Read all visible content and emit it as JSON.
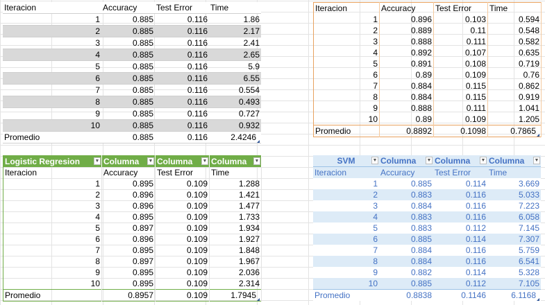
{
  "gray_table": {
    "headers": [
      "Iteracion",
      "Accuracy",
      "Test Error",
      "Time"
    ],
    "rows": [
      [
        "1",
        "0.885",
        "0.116",
        "1.86"
      ],
      [
        "2",
        "0.885",
        "0.116",
        "2.17"
      ],
      [
        "3",
        "0.885",
        "0.116",
        "2.41"
      ],
      [
        "4",
        "0.885",
        "0.116",
        "2.65"
      ],
      [
        "5",
        "0.885",
        "0.116",
        "5.9"
      ],
      [
        "6",
        "0.885",
        "0.116",
        "6.55"
      ],
      [
        "7",
        "0.885",
        "0.116",
        "0.554"
      ],
      [
        "8",
        "0.885",
        "0.116",
        "0.493"
      ],
      [
        "9",
        "0.885",
        "0.116",
        "0.727"
      ],
      [
        "10",
        "0.885",
        "0.116",
        "0.932"
      ]
    ],
    "footer": [
      "Promedio",
      "0.885",
      "0.116",
      "2.4246"
    ]
  },
  "orange_table": {
    "headers": [
      "Iteracion",
      "Accuracy",
      "Test Error",
      "Time"
    ],
    "rows": [
      [
        "1",
        "0.896",
        "0.103",
        "0.594"
      ],
      [
        "2",
        "0.889",
        "0.11",
        "0.548"
      ],
      [
        "3",
        "0.888",
        "0.111",
        "0.582"
      ],
      [
        "4",
        "0.892",
        "0.107",
        "0.635"
      ],
      [
        "5",
        "0.891",
        "0.108",
        "0.719"
      ],
      [
        "6",
        "0.89",
        "0.109",
        "0.76"
      ],
      [
        "7",
        "0.884",
        "0.115",
        "0.862"
      ],
      [
        "8",
        "0.884",
        "0.115",
        "0.919"
      ],
      [
        "9",
        "0.888",
        "0.111",
        "1.041"
      ],
      [
        "10",
        "0.89",
        "0.109",
        "1.205"
      ]
    ],
    "footer": [
      "Promedio",
      "0.8892",
      "0.1098",
      "0.7865"
    ]
  },
  "green_table": {
    "titles": [
      "Logistic Regresion",
      "Columna",
      "Columna",
      "Columna"
    ],
    "headers": [
      "Iteracion",
      "Accuracy",
      "Test Error",
      "Time"
    ],
    "rows": [
      [
        "1",
        "0.895",
        "0.109",
        "1.288"
      ],
      [
        "2",
        "0.896",
        "0.109",
        "1.421"
      ],
      [
        "3",
        "0.896",
        "0.109",
        "1.477"
      ],
      [
        "4",
        "0.895",
        "0.109",
        "1.733"
      ],
      [
        "5",
        "0.897",
        "0.109",
        "1.934"
      ],
      [
        "6",
        "0.896",
        "0.109",
        "1.927"
      ],
      [
        "7",
        "0.895",
        "0.109",
        "1.848"
      ],
      [
        "8",
        "0.897",
        "0.109",
        "1.967"
      ],
      [
        "9",
        "0.895",
        "0.109",
        "2.036"
      ],
      [
        "10",
        "0.895",
        "0.109",
        "2.314"
      ]
    ],
    "footer": [
      "Promedio",
      "0.8957",
      "0.109",
      "1.7945"
    ]
  },
  "blue_table": {
    "titles": [
      "SVM",
      "Columna",
      "Columna",
      "Columna"
    ],
    "headers": [
      "Iteracion",
      "Accuracy",
      "Test Error",
      "Time"
    ],
    "rows": [
      [
        "1",
        "0.885",
        "0.114",
        "3.669"
      ],
      [
        "2",
        "0.883",
        "0.116",
        "5.033"
      ],
      [
        "3",
        "0.884",
        "0.116",
        "7.223"
      ],
      [
        "4",
        "0.883",
        "0.116",
        "6.058"
      ],
      [
        "5",
        "0.883",
        "0.112",
        "7.145"
      ],
      [
        "6",
        "0.885",
        "0.114",
        "7.307"
      ],
      [
        "7",
        "0.884",
        "0.116",
        "5.759"
      ],
      [
        "8",
        "0.884",
        "0.116",
        "6.541"
      ],
      [
        "9",
        "0.882",
        "0.114",
        "5.328"
      ],
      [
        "10",
        "0.885",
        "0.112",
        "7.105"
      ]
    ],
    "footer": [
      "Promedio",
      "0.8838",
      "0.1146",
      "6.1168"
    ]
  },
  "colors": {
    "gray_band": "#d9d9d9",
    "orange_border": "#e8a25f",
    "green_header": "#70ad47",
    "blue_text": "#4472c4",
    "blue_band": "#ddebf7"
  },
  "icons": {
    "filter_dropdown": "dropdown-arrow-icon"
  }
}
